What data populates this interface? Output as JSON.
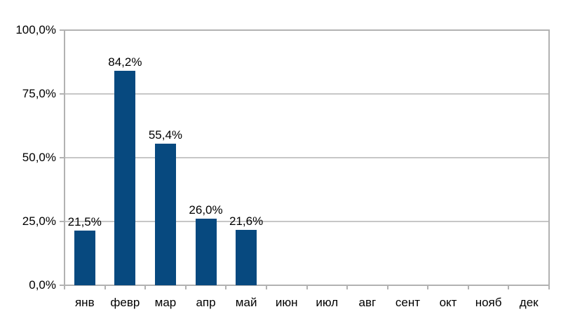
{
  "chart_data": {
    "type": "bar",
    "title": "",
    "xlabel": "",
    "ylabel": "",
    "legend": "none",
    "grid": "horizontal",
    "categories": [
      "янв",
      "февр",
      "мар",
      "апр",
      "май",
      "июн",
      "июл",
      "авг",
      "сент",
      "окт",
      "нояб",
      "дек"
    ],
    "values": [
      21.5,
      84.2,
      55.4,
      26.0,
      21.6,
      null,
      null,
      null,
      null,
      null,
      null,
      null
    ],
    "data_labels": [
      "21,5%",
      "84,2%",
      "55,4%",
      "26,0%",
      "21,6%",
      null,
      null,
      null,
      null,
      null,
      null,
      null
    ],
    "ylim": [
      0,
      100
    ],
    "y_ticks": [
      0,
      25,
      50,
      75,
      100
    ],
    "y_tick_labels": [
      "0,0%",
      "25,0%",
      "50,0%",
      "75,0%",
      "100,0%"
    ],
    "colors": {
      "bar": "#07497f",
      "grid": "#c7c7c7",
      "axis": "#b2b2b2",
      "text": "#000000",
      "background": "#ffffff"
    }
  }
}
